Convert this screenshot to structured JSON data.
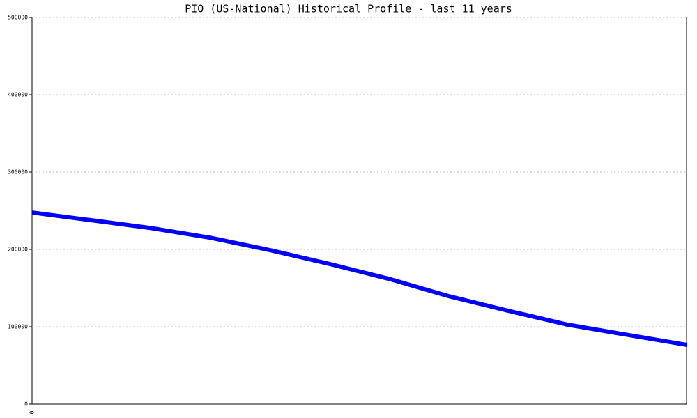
{
  "chart_data": {
    "type": "line",
    "title": "PIO (US-National) Historical Profile - last 11 years",
    "categories": [
      "0",
      null,
      null,
      null,
      null,
      null,
      null,
      null,
      null,
      null,
      null,
      null
    ],
    "values": [
      247700,
      237700,
      227600,
      215000,
      199000,
      181200,
      161900,
      139600,
      120700,
      102700,
      89600,
      76600
    ],
    "color": "#0000ff",
    "ylim": [
      0,
      500000
    ],
    "yticks": [
      0,
      100000,
      200000,
      300000,
      400000,
      500000
    ],
    "grid": true
  }
}
